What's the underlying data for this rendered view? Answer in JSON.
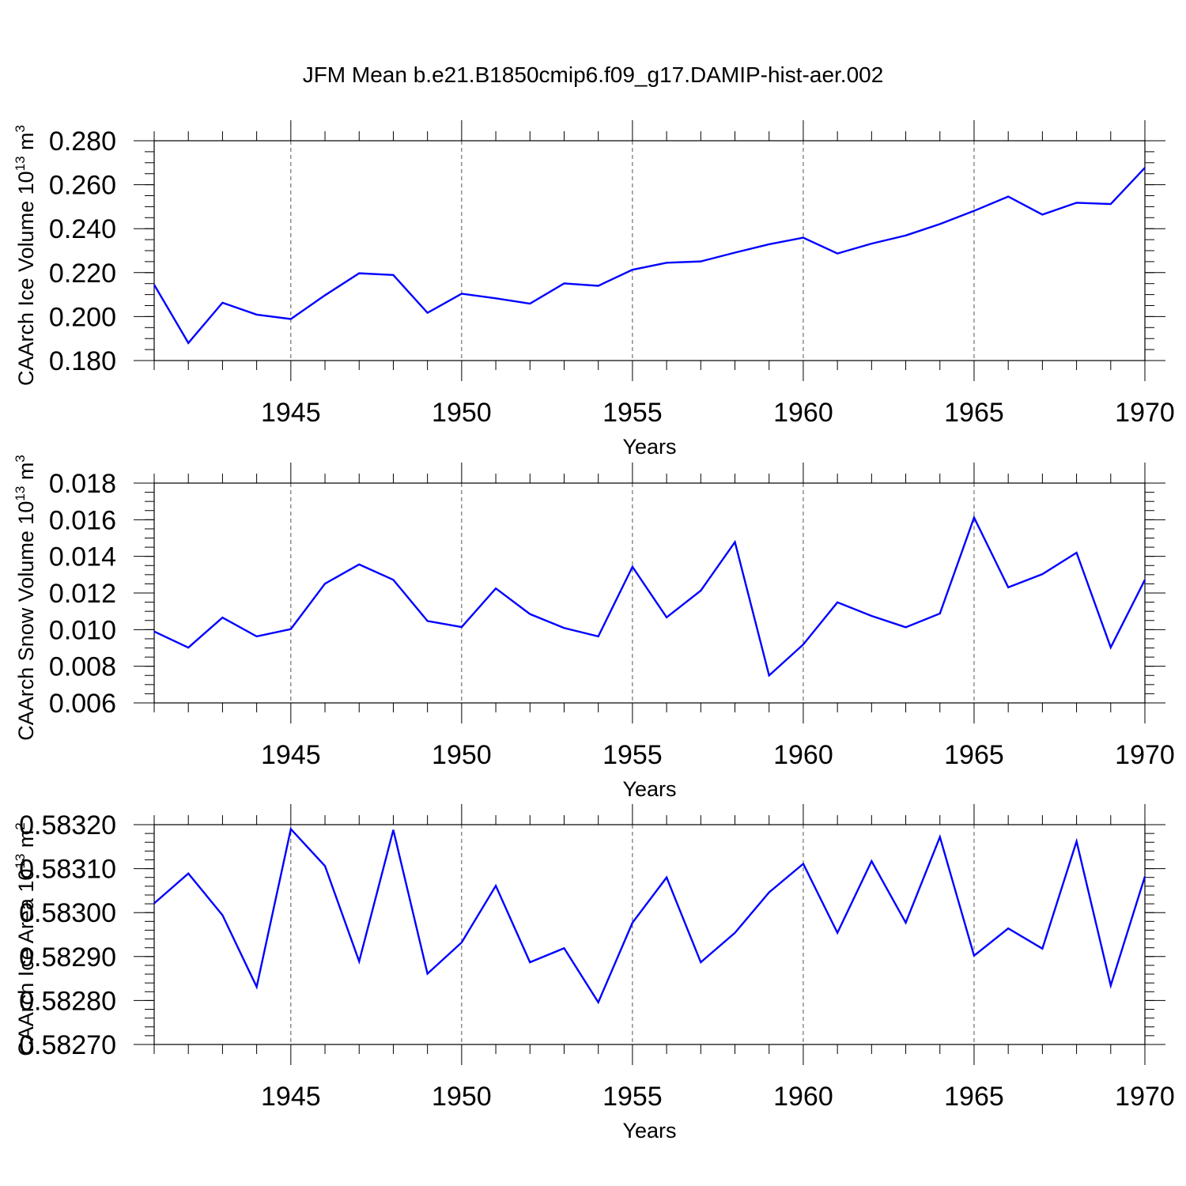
{
  "title": "JFM Mean b.e21.B1850cmip6.f09_g17.DAMIP-hist-aer.002",
  "colors": {
    "line": "#0000ff",
    "axes": "#000000",
    "grid": "#555555"
  },
  "chart_data": [
    {
      "type": "line",
      "xlabel": "Years",
      "ylabel": "CAArch Ice Volume 10",
      "ylabel_sup": "13",
      "ylabel_unit": " m",
      "ylabel_unit_sup": "3",
      "xlim": [
        1941,
        1970
      ],
      "ylim": [
        0.18,
        0.28
      ],
      "xticks": [
        1945,
        1950,
        1955,
        1960,
        1965,
        1970
      ],
      "yticks": [
        "0.180",
        "0.200",
        "0.220",
        "0.240",
        "0.260",
        "0.280"
      ],
      "yminor_step": 0.005,
      "grid_x": true,
      "x": [
        1941,
        1942,
        1943,
        1944,
        1945,
        1946,
        1947,
        1948,
        1949,
        1950,
        1951,
        1952,
        1953,
        1954,
        1955,
        1956,
        1957,
        1958,
        1959,
        1960,
        1961,
        1962,
        1963,
        1964,
        1965,
        1966,
        1967,
        1968,
        1969,
        1970
      ],
      "values": [
        0.2145,
        0.188,
        0.2063,
        0.2009,
        0.1989,
        0.2097,
        0.2197,
        0.2189,
        0.2017,
        0.2104,
        0.2083,
        0.2059,
        0.2151,
        0.214,
        0.2213,
        0.2245,
        0.2251,
        0.2291,
        0.2329,
        0.2359,
        0.2287,
        0.2332,
        0.2369,
        0.2421,
        0.2481,
        0.2546,
        0.2464,
        0.2518,
        0.2512,
        0.2677
      ]
    },
    {
      "type": "line",
      "xlabel": "Years",
      "ylabel": "CAArch Snow Volume 10",
      "ylabel_sup": "13",
      "ylabel_unit": " m",
      "ylabel_unit_sup": "3",
      "xlim": [
        1941,
        1970
      ],
      "ylim": [
        0.006,
        0.018
      ],
      "xticks": [
        1945,
        1950,
        1955,
        1960,
        1965,
        1970
      ],
      "yticks": [
        "0.006",
        "0.008",
        "0.010",
        "0.012",
        "0.014",
        "0.016",
        "0.018"
      ],
      "yminor_step": 0.0005,
      "grid_x": true,
      "x": [
        1941,
        1942,
        1943,
        1944,
        1945,
        1946,
        1947,
        1948,
        1949,
        1950,
        1951,
        1952,
        1953,
        1954,
        1955,
        1956,
        1957,
        1958,
        1959,
        1960,
        1961,
        1962,
        1963,
        1964,
        1965,
        1966,
        1967,
        1968,
        1969,
        1970
      ],
      "values": [
        0.0099,
        0.00902,
        0.01066,
        0.00963,
        0.01003,
        0.01251,
        0.01356,
        0.01272,
        0.01047,
        0.01014,
        0.01225,
        0.01085,
        0.01009,
        0.00963,
        0.01343,
        0.01067,
        0.01213,
        0.01478,
        0.0075,
        0.00919,
        0.01149,
        0.01075,
        0.01013,
        0.01088,
        0.01612,
        0.01231,
        0.01303,
        0.0142,
        0.00903,
        0.01272
      ]
    },
    {
      "type": "line",
      "xlabel": "Years",
      "ylabel": "CAArch Ice Area 10",
      "ylabel_sup": "13",
      "ylabel_unit": " m",
      "ylabel_unit_sup": "2",
      "xlim": [
        1941,
        1970
      ],
      "ylim": [
        0.5827,
        0.5832
      ],
      "xticks": [
        1945,
        1950,
        1955,
        1960,
        1965,
        1970
      ],
      "yticks": [
        "0.58270",
        "0.58280",
        "0.58290",
        "0.58300",
        "0.58310",
        "0.58320"
      ],
      "yminor_step": 2e-05,
      "grid_x": true,
      "x": [
        1941,
        1942,
        1943,
        1944,
        1945,
        1946,
        1947,
        1948,
        1949,
        1950,
        1951,
        1952,
        1953,
        1954,
        1955,
        1956,
        1957,
        1958,
        1959,
        1960,
        1961,
        1962,
        1963,
        1964,
        1965,
        1966,
        1967,
        1968,
        1969,
        1970
      ],
      "values": [
        0.583021,
        0.583089,
        0.582994,
        0.582831,
        0.58319,
        0.583106,
        0.582889,
        0.583188,
        0.582861,
        0.582932,
        0.583061,
        0.582887,
        0.582919,
        0.582796,
        0.582977,
        0.58308,
        0.582887,
        0.582954,
        0.583046,
        0.583111,
        0.582954,
        0.583117,
        0.582977,
        0.583172,
        0.582902,
        0.582964,
        0.582918,
        0.583162,
        0.582834,
        0.583082
      ]
    }
  ]
}
